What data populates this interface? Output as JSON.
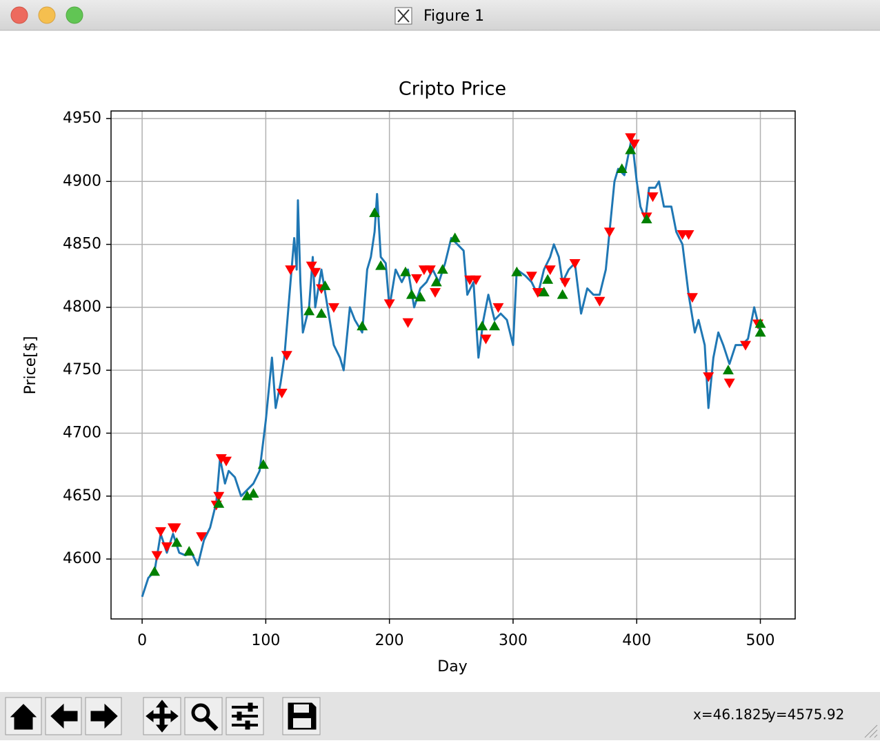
{
  "window": {
    "title": "Figure 1",
    "status": [
      "x=46.1825",
      "y=4575.92"
    ]
  },
  "chart_data": {
    "type": "line",
    "title": "Cripto Price",
    "xlabel": "Day",
    "ylabel": "Price[$]",
    "xlim": [
      -25.15,
      528.15
    ],
    "ylim": [
      4552.4,
      4956.0
    ],
    "xticks": [
      0,
      100,
      200,
      300,
      400,
      500
    ],
    "yticks": [
      4600,
      4650,
      4700,
      4750,
      4800,
      4850,
      4900,
      4950
    ],
    "grid": true,
    "series": [
      {
        "type": "line",
        "color": "#1f77b4",
        "x": [
          0,
          5,
          10,
          15,
          20,
          25,
          30,
          35,
          40,
          45,
          50,
          55,
          60,
          63,
          67,
          70,
          75,
          80,
          85,
          90,
          95,
          100,
          105,
          108,
          112,
          115,
          120,
          123,
          125,
          126,
          128,
          130,
          135,
          138,
          140,
          145,
          150,
          155,
          160,
          163,
          168,
          172,
          178,
          182,
          185,
          188,
          190,
          193,
          197,
          200,
          205,
          210,
          215,
          220,
          225,
          230,
          235,
          240,
          245,
          250,
          255,
          260,
          263,
          268,
          272,
          276,
          280,
          285,
          290,
          295,
          300,
          303,
          310,
          315,
          320,
          325,
          330,
          333,
          337,
          340,
          345,
          350,
          355,
          360,
          365,
          370,
          375,
          378,
          382,
          385,
          390,
          393,
          396,
          400,
          403,
          407,
          410,
          415,
          418,
          422,
          428,
          432,
          437,
          442,
          447,
          450,
          455,
          458,
          462,
          466,
          470,
          475,
          480,
          485,
          490,
          495,
          500
        ],
        "values": [
          4570,
          4585,
          4590,
          4620,
          4605,
          4620,
          4605,
          4603,
          4605,
          4595,
          4615,
          4625,
          4645,
          4680,
          4660,
          4670,
          4665,
          4650,
          4655,
          4660,
          4670,
          4710,
          4760,
          4720,
          4740,
          4760,
          4820,
          4855,
          4830,
          4885,
          4820,
          4780,
          4800,
          4840,
          4800,
          4830,
          4800,
          4770,
          4760,
          4750,
          4800,
          4790,
          4780,
          4830,
          4840,
          4860,
          4890,
          4840,
          4835,
          4800,
          4830,
          4820,
          4830,
          4800,
          4815,
          4820,
          4830,
          4820,
          4835,
          4855,
          4850,
          4845,
          4810,
          4820,
          4760,
          4790,
          4810,
          4790,
          4795,
          4790,
          4770,
          4830,
          4825,
          4820,
          4810,
          4830,
          4840,
          4850,
          4840,
          4820,
          4830,
          4835,
          4795,
          4815,
          4810,
          4810,
          4830,
          4860,
          4900,
          4910,
          4905,
          4920,
          4935,
          4900,
          4880,
          4870,
          4895,
          4895,
          4900,
          4880,
          4880,
          4860,
          4850,
          4810,
          4780,
          4790,
          4770,
          4720,
          4760,
          4780,
          4770,
          4755,
          4770,
          4770,
          4775,
          4800,
          4780
        ]
      },
      {
        "type": "scatter",
        "marker": "down",
        "color": "#ff0000",
        "x": [
          12,
          15,
          20,
          25,
          27,
          48,
          60,
          62,
          64,
          68,
          113,
          117,
          120,
          137,
          140,
          145,
          155,
          200,
          215,
          222,
          228,
          233,
          237,
          265,
          270,
          278,
          288,
          315,
          320,
          330,
          342,
          350,
          370,
          378,
          395,
          398,
          408,
          413,
          437,
          442,
          445,
          458,
          475,
          488,
          498
        ],
        "values": [
          4603,
          4622,
          4610,
          4625,
          4625,
          4618,
          4643,
          4650,
          4680,
          4678,
          4732,
          4762,
          4830,
          4833,
          4828,
          4815,
          4800,
          4803,
          4788,
          4823,
          4830,
          4830,
          4812,
          4822,
          4822,
          4775,
          4800,
          4825,
          4812,
          4830,
          4820,
          4835,
          4805,
          4860,
          4935,
          4930,
          4872,
          4888,
          4858,
          4858,
          4808,
          4745,
          4740,
          4770,
          4787
        ]
      },
      {
        "type": "scatter",
        "marker": "up",
        "color": "#008000",
        "x": [
          10,
          28,
          38,
          62,
          85,
          90,
          98,
          135,
          145,
          148,
          178,
          188,
          193,
          213,
          218,
          225,
          238,
          243,
          253,
          275,
          285,
          303,
          325,
          328,
          340,
          388,
          395,
          408,
          474,
          500,
          500
        ],
        "values": [
          4590,
          4613,
          4606,
          4644,
          4650,
          4652,
          4675,
          4797,
          4795,
          4817,
          4785,
          4875,
          4833,
          4828,
          4810,
          4808,
          4820,
          4830,
          4855,
          4785,
          4785,
          4828,
          4812,
          4822,
          4810,
          4910,
          4925,
          4870,
          4750,
          4780,
          4787
        ]
      }
    ]
  }
}
